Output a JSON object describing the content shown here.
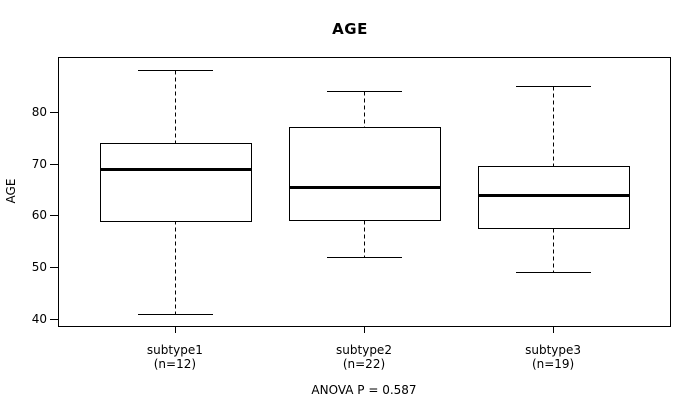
{
  "chart_data": {
    "type": "boxplot",
    "title": "AGE",
    "ylabel": "AGE",
    "annotation": "ANOVA P = 0.587",
    "yticks": [
      40,
      50,
      60,
      70,
      80
    ],
    "ylim": [
      38.6,
      90.6
    ],
    "grid": false,
    "legend": false,
    "categories": [
      "subtype1",
      "subtype2",
      "subtype3"
    ],
    "groups": [
      {
        "label": "subtype1",
        "sublabel": "(n=12)",
        "n": 12,
        "min": 41,
        "q1": 59,
        "median": 69,
        "q3": 74,
        "max": 88
      },
      {
        "label": "subtype2",
        "sublabel": "(n=22)",
        "n": 22,
        "min": 52,
        "q1": 59,
        "median": 65.5,
        "q3": 77,
        "max": 84
      },
      {
        "label": "subtype3",
        "sublabel": "(n=19)",
        "n": 19,
        "min": 49,
        "q1": 57.5,
        "median": 64,
        "q3": 69.5,
        "max": 85
      }
    ],
    "colors": {
      "line": "#000000",
      "box_fill": "#ffffff",
      "background": "#ffffff",
      "text": "#000000"
    }
  }
}
